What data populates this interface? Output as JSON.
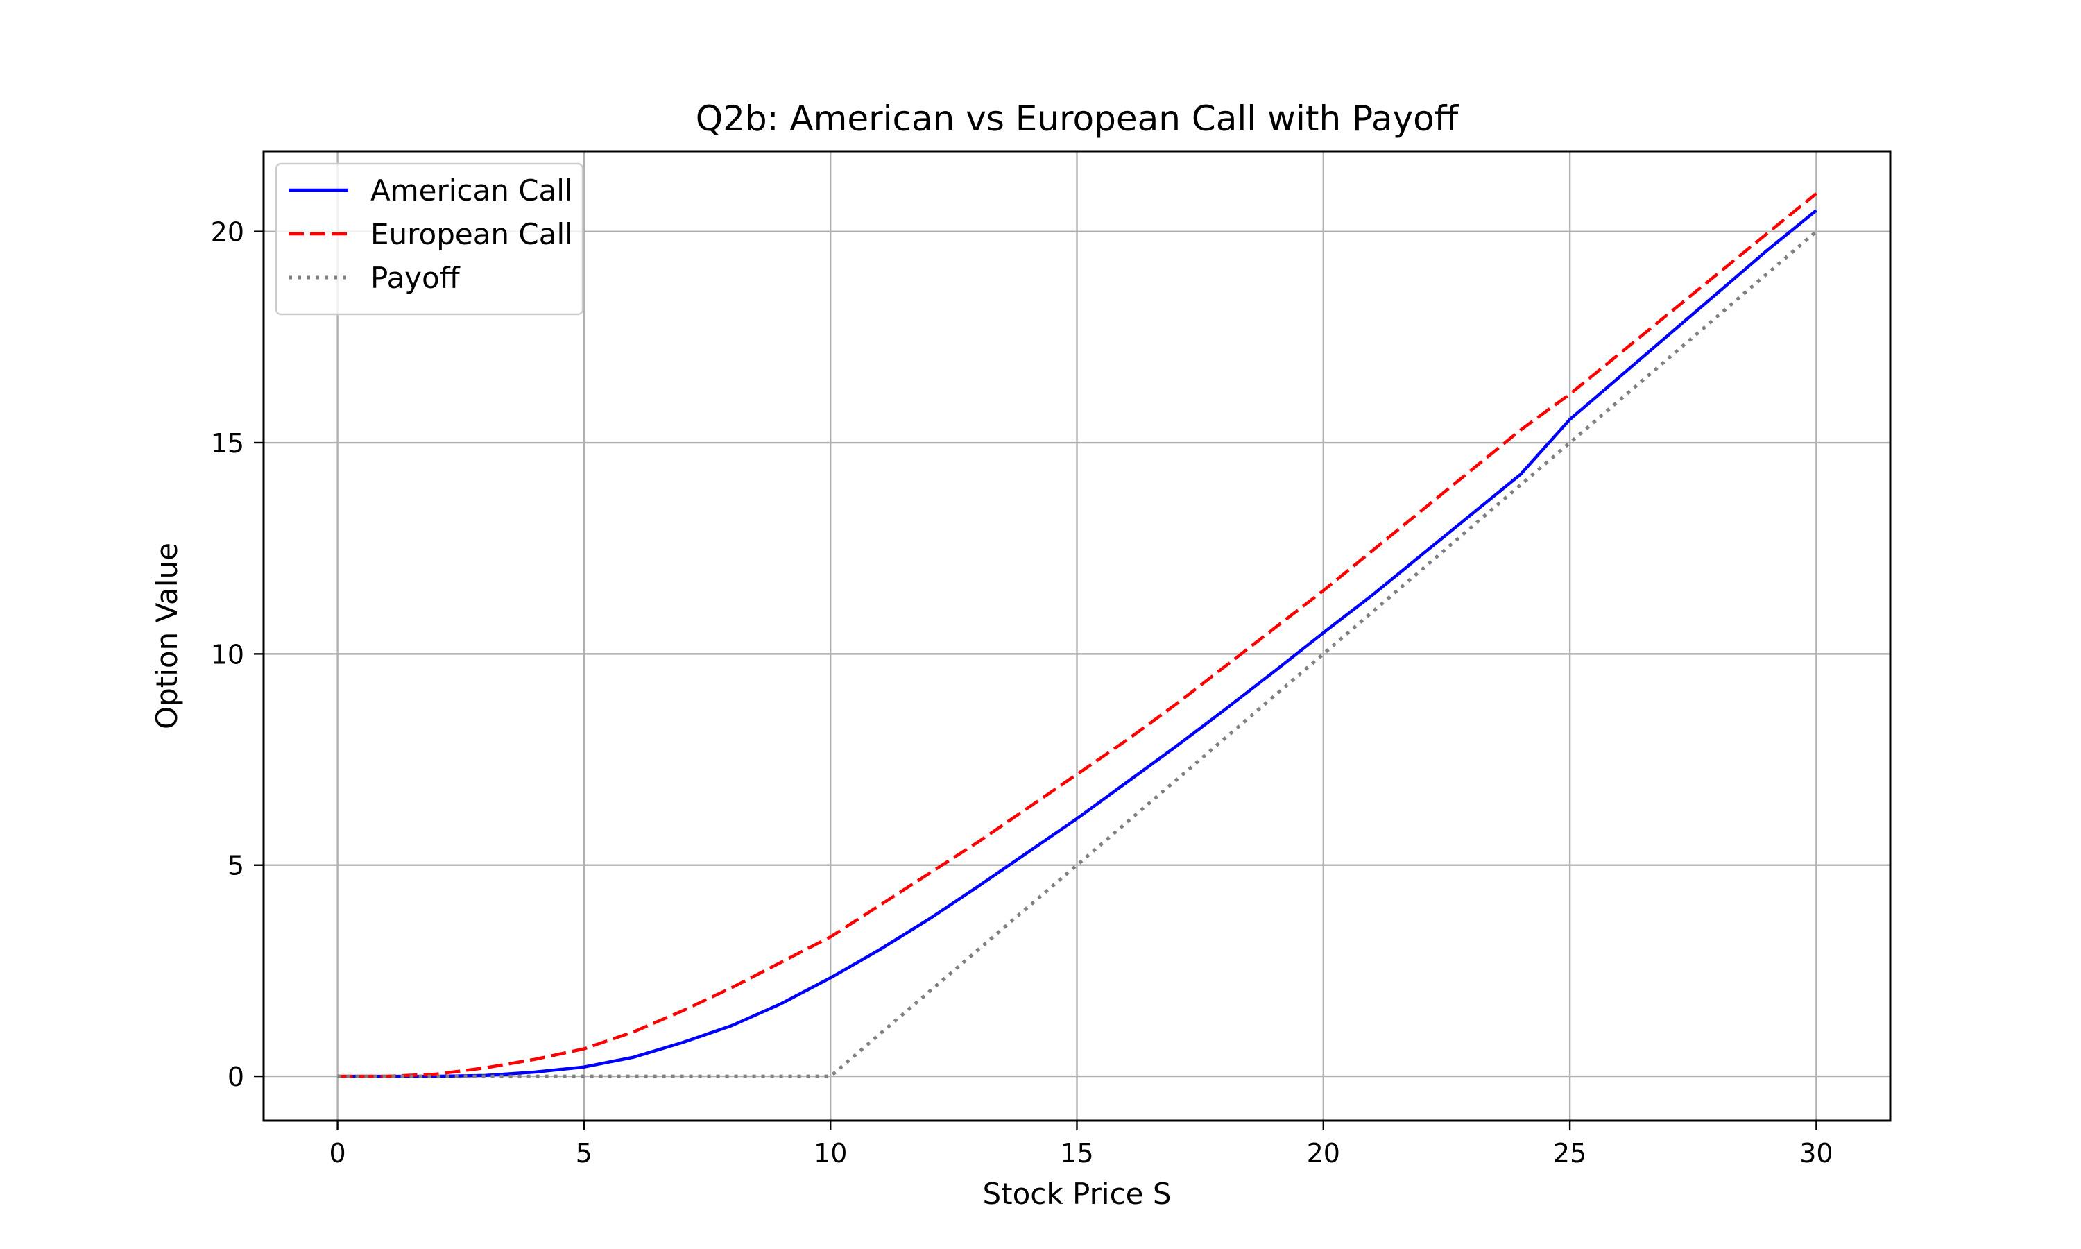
{
  "chart_data": {
    "type": "line",
    "title": "Q2b: American vs European Call with Payoff",
    "xlabel": "Stock Price S",
    "ylabel": "Option Value",
    "xlim": [
      -1.5,
      31.5
    ],
    "ylim": [
      -1.05,
      21.9
    ],
    "xticks": [
      0,
      5,
      10,
      15,
      20,
      25,
      30
    ],
    "yticks": [
      0,
      5,
      10,
      15,
      20
    ],
    "grid": true,
    "legend_position": "upper-left",
    "series": [
      {
        "name": "American Call",
        "color": "#0000ff",
        "style": "solid",
        "x": [
          0,
          1,
          2,
          3,
          4,
          5,
          6,
          7,
          8,
          9,
          10,
          11,
          12,
          13,
          14,
          15,
          16,
          17,
          18,
          19,
          20,
          21,
          22,
          23,
          24,
          25,
          26,
          27,
          28,
          29,
          30
        ],
        "y": [
          0,
          0,
          0,
          0.02,
          0.1,
          0.22,
          0.45,
          0.8,
          1.2,
          1.72,
          2.33,
          3.0,
          3.72,
          4.5,
          5.3,
          6.1,
          6.95,
          7.8,
          8.68,
          9.58,
          10.5,
          11.4,
          12.35,
          13.3,
          14.25,
          15.55,
          16.55,
          17.55,
          18.55,
          19.55,
          20.5
        ]
      },
      {
        "name": "European Call",
        "color": "#ff0000",
        "style": "dashed",
        "x": [
          0,
          1,
          2,
          3,
          4,
          5,
          6,
          7,
          8,
          9,
          10,
          11,
          12,
          13,
          14,
          15,
          16,
          17,
          18,
          19,
          20,
          21,
          22,
          23,
          24,
          25,
          26,
          27,
          28,
          29,
          30
        ],
        "y": [
          0,
          0,
          0.05,
          0.2,
          0.4,
          0.65,
          1.05,
          1.55,
          2.1,
          2.7,
          3.3,
          4.05,
          4.8,
          5.55,
          6.35,
          7.15,
          7.95,
          8.8,
          9.7,
          10.6,
          11.5,
          12.45,
          13.4,
          14.35,
          15.3,
          16.15,
          17.1,
          18.05,
          19.0,
          19.95,
          20.9
        ]
      },
      {
        "name": "Payoff",
        "color": "#808080",
        "style": "dotted",
        "x": [
          0,
          10,
          30
        ],
        "y": [
          0,
          0,
          20
        ]
      }
    ]
  }
}
